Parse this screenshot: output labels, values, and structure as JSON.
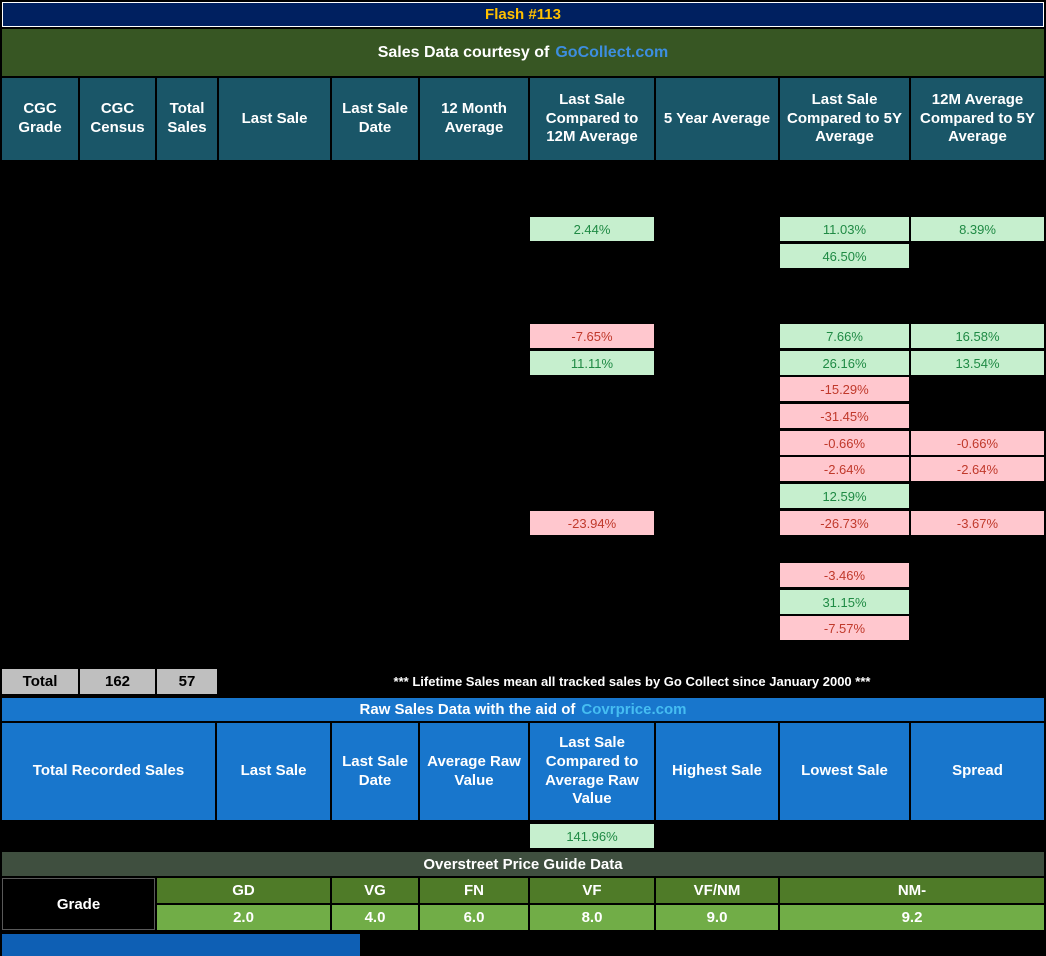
{
  "title_bar": {
    "text": "Flash #113"
  },
  "gocollect_bar": {
    "prefix": "Sales Data courtesy of",
    "link": "GoCollect.com"
  },
  "cgc_table": {
    "headers": [
      "CGC Grade",
      "CGC Census",
      "Total Sales",
      "Last Sale",
      "Last Sale Date",
      "12 Month Average",
      "Last Sale Compared to 12M Average",
      "5 Year Average",
      "Last Sale Compared to 5Y Average",
      "12M Average Compared to 5Y Average"
    ],
    "cells": [
      {
        "row": 0,
        "col": "ls_vs_12m",
        "value": "2.44%",
        "positive": true
      },
      {
        "row": 0,
        "col": "ls_vs_5y",
        "value": "11.03%",
        "positive": true
      },
      {
        "row": 0,
        "col": "12m_vs_5y",
        "value": "8.39%",
        "positive": true
      },
      {
        "row": 1,
        "col": "ls_vs_5y",
        "value": "46.50%",
        "positive": true
      },
      {
        "row": 2,
        "col": "ls_vs_12m",
        "value": "-7.65%",
        "positive": false
      },
      {
        "row": 2,
        "col": "ls_vs_5y",
        "value": "7.66%",
        "positive": true
      },
      {
        "row": 2,
        "col": "12m_vs_5y",
        "value": "16.58%",
        "positive": true
      },
      {
        "row": 3,
        "col": "ls_vs_12m",
        "value": "11.11%",
        "positive": true
      },
      {
        "row": 3,
        "col": "ls_vs_5y",
        "value": "26.16%",
        "positive": true
      },
      {
        "row": 3,
        "col": "12m_vs_5y",
        "value": "13.54%",
        "positive": true
      },
      {
        "row": 4,
        "col": "ls_vs_5y",
        "value": "-15.29%",
        "positive": false
      },
      {
        "row": 5,
        "col": "ls_vs_5y",
        "value": "-31.45%",
        "positive": false
      },
      {
        "row": 6,
        "col": "ls_vs_5y",
        "value": "-0.66%",
        "positive": false
      },
      {
        "row": 6,
        "col": "12m_vs_5y",
        "value": "-0.66%",
        "positive": false
      },
      {
        "row": 7,
        "col": "ls_vs_5y",
        "value": "-2.64%",
        "positive": false
      },
      {
        "row": 7,
        "col": "12m_vs_5y",
        "value": "-2.64%",
        "positive": false
      },
      {
        "row": 8,
        "col": "ls_vs_5y",
        "value": "12.59%",
        "positive": true
      },
      {
        "row": 9,
        "col": "ls_vs_12m",
        "value": "-23.94%",
        "positive": false
      },
      {
        "row": 9,
        "col": "ls_vs_5y",
        "value": "-26.73%",
        "positive": false
      },
      {
        "row": 9,
        "col": "12m_vs_5y",
        "value": "-3.67%",
        "positive": false
      },
      {
        "row": 10,
        "col": "ls_vs_5y",
        "value": "-3.46%",
        "positive": false
      },
      {
        "row": 11,
        "col": "ls_vs_5y",
        "value": "31.15%",
        "positive": true
      },
      {
        "row": 12,
        "col": "ls_vs_5y",
        "value": "-7.57%",
        "positive": false
      }
    ],
    "total_row": {
      "label": "Total",
      "census_total": "162",
      "sales_total": "57",
      "note": "*** Lifetime Sales mean all tracked sales by Go Collect since January 2000 ***"
    }
  },
  "raw_bar": {
    "prefix": "Raw Sales Data with the aid of",
    "link": "Covrprice.com"
  },
  "raw_table": {
    "headers": [
      "Total Recorded Sales",
      "Last Sale",
      "Last Sale Date",
      "Average Raw Value",
      "Last Sale Compared to Average Raw Value",
      "Highest Sale",
      "Lowest Sale",
      "Spread"
    ],
    "cells": [
      {
        "col": "ls_vs_avg",
        "value": "141.96%",
        "positive": true
      }
    ]
  },
  "overstreet": {
    "title": "Overstreet Price Guide Data",
    "row_label": "Grade",
    "grades": [
      "GD",
      "VG",
      "FN",
      "VF",
      "VF/NM",
      "NM-"
    ],
    "values": [
      "2.0",
      "4.0",
      "6.0",
      "8.0",
      "9.0",
      "9.2"
    ]
  },
  "colors": {
    "title_bg": "#002060",
    "title_text": "#FFC000",
    "gocollect_bar_bg": "#375623",
    "link_blue": "#3D8EE0",
    "covrprice_link": "#45BDF2",
    "cgc_header_bg": "#1A5668",
    "raw_blue": "#1876CC",
    "positive_bg": "#C6EFCE",
    "positive_text": "#1F8A44",
    "negative_bg": "#FFC7CE",
    "negative_text": "#C0392B",
    "total_cell_bg": "#BFBFBF",
    "overstreet_bar_bg": "#3F4F3F",
    "grade_row_bg": "#4F7B28",
    "value_row_bg": "#71AD47",
    "bottom_bar_bg": "#0E5FB4"
  }
}
